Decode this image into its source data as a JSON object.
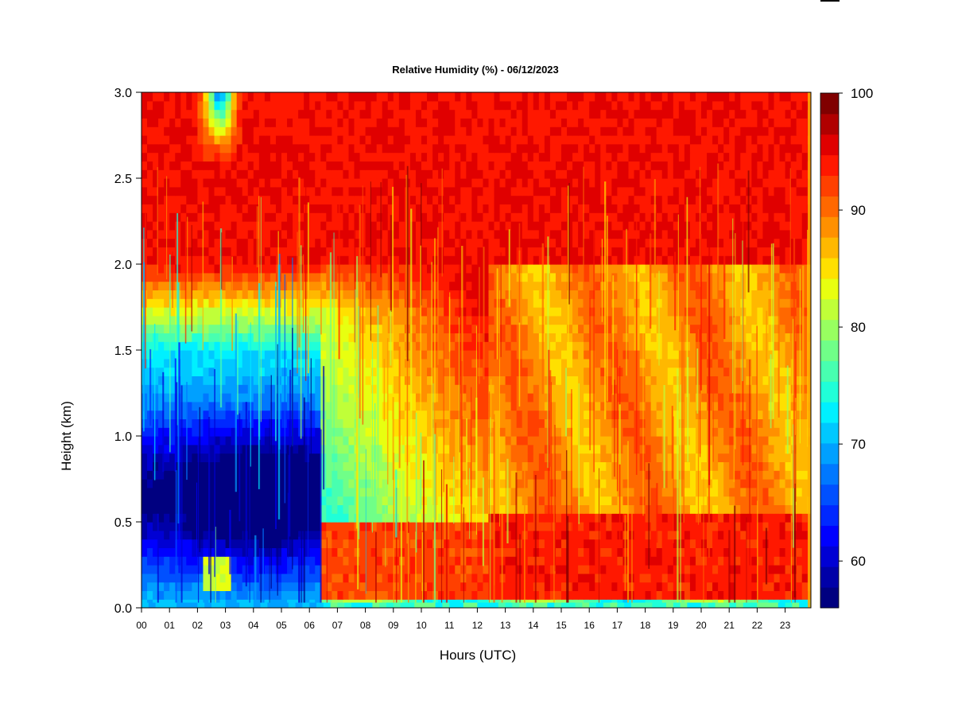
{
  "chart_data": {
    "type": "heatmap",
    "title": "Relative Humidity (%) - 06/12/2023",
    "xlabel": "Hours (UTC)",
    "ylabel": "Height (km)",
    "x_ticks": [
      "00",
      "01",
      "02",
      "03",
      "04",
      "05",
      "06",
      "07",
      "08",
      "09",
      "10",
      "11",
      "12",
      "13",
      "14",
      "15",
      "16",
      "17",
      "18",
      "19",
      "20",
      "21",
      "22",
      "23"
    ],
    "y_ticks": [
      "0.0",
      "0.5",
      "1.0",
      "1.5",
      "2.0",
      "2.5",
      "3.0"
    ],
    "xlim": [
      0,
      24
    ],
    "ylim": [
      0,
      3.0
    ],
    "colorbar": {
      "min": 56,
      "max": 100,
      "step": 2,
      "tick_labels": [
        "60",
        "70",
        "80",
        "90",
        "100"
      ],
      "tick_values": [
        60,
        70,
        80,
        90,
        100
      ],
      "colors": [
        "#000080",
        "#0000a8",
        "#0000d4",
        "#0000ff",
        "#0028ff",
        "#0050ff",
        "#0078ff",
        "#00a0ff",
        "#00c8ff",
        "#00f0ff",
        "#20ffd8",
        "#48ffb0",
        "#70ff88",
        "#98ff60",
        "#c0ff38",
        "#e8ff10",
        "#ffe000",
        "#ffb800",
        "#ff9000",
        "#ff6800",
        "#ff4000",
        "#ff1800",
        "#e00000",
        "#b00000",
        "#800000"
      ]
    },
    "grid": false
  }
}
